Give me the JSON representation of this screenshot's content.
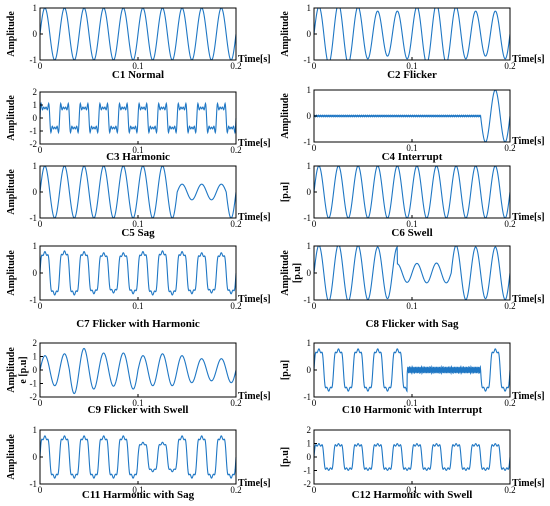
{
  "colors": {
    "line": "#1f77c4",
    "axis": "#000000",
    "background": "#ffffff"
  },
  "chart_data": [
    {
      "id": "C1",
      "type": "line",
      "title": "C1  Normal",
      "ylabel": "Amplitude",
      "xlabel": "Time[s]",
      "xlim": [
        0,
        0.2
      ],
      "ylim": [
        -1,
        1
      ],
      "xticks": [
        "0",
        "0.1",
        "0.2"
      ],
      "yticks": [
        "-1",
        "0",
        "1"
      ],
      "signal": {
        "freq_hz": 50,
        "amplitude": 1
      }
    },
    {
      "id": "C2",
      "type": "line",
      "title": "C2  Flicker",
      "ylabel": "Amplitude",
      "xlabel": "Time[s]",
      "xlim": [
        0,
        0.2
      ],
      "ylim": [
        -1,
        1
      ],
      "xticks": [
        "0",
        "0.1",
        "0.2"
      ],
      "yticks": [
        "-1",
        "0",
        "1"
      ],
      "signal": {
        "freq_hz": 50,
        "amplitude": 1,
        "flicker_depth": 0.15,
        "flicker_hz": 10
      }
    },
    {
      "id": "C3",
      "type": "line",
      "title": "C3  Harmonic",
      "ylabel": "Amplitude",
      "xlabel": "Time[s]",
      "xlim": [
        0,
        0.2
      ],
      "ylim": [
        -2,
        2
      ],
      "xticks": [
        "0",
        "0.1",
        "0.2"
      ],
      "yticks": [
        "-2",
        "-1",
        "0",
        "1",
        "2"
      ],
      "signal": {
        "freq_hz": 50,
        "amplitude": 1,
        "harmonics": [
          [
            3,
            0.4
          ],
          [
            5,
            0.3
          ],
          [
            7,
            0.2
          ]
        ]
      }
    },
    {
      "id": "C4",
      "type": "line",
      "title": "C4  Interrupt",
      "ylabel": "Amplitude",
      "xlabel": "Time[s]",
      "xlim": [
        0,
        0.2
      ],
      "ylim": [
        -1,
        1
      ],
      "xticks": [
        "0",
        "0.1",
        "0.2"
      ],
      "yticks": [
        "-1",
        "0",
        "1"
      ],
      "signal": {
        "freq_hz": 50,
        "amplitude": 1,
        "interrupt_start_s": 0,
        "interrupt_end_s": 0.17,
        "residual": 0.02
      }
    },
    {
      "id": "C5",
      "type": "line",
      "title": "C5  Sag",
      "ylabel": "Amplitude",
      "xlabel": "Time[s]",
      "xlim": [
        0,
        0.2
      ],
      "ylim": [
        -1,
        1
      ],
      "xticks": [
        "0",
        "0.1",
        "0.2"
      ],
      "yticks": [
        "-1",
        "0",
        "1"
      ],
      "signal": {
        "freq_hz": 50,
        "amplitude": 1,
        "sag_start_s": 0.14,
        "sag_end_s": 0.19,
        "sag_level": 0.3
      }
    },
    {
      "id": "C6",
      "type": "line",
      "title": "C6  Swell",
      "ylabel": "[p.u]",
      "xlabel": "Time[s]",
      "xlim": [
        0,
        0.2
      ],
      "ylim": [
        -1,
        1
      ],
      "xticks": [
        "0",
        "0.1",
        "0.2"
      ],
      "yticks": [
        "-1",
        "0",
        "1"
      ],
      "signal": {
        "freq_hz": 50,
        "amplitude": 1
      }
    },
    {
      "id": "C7",
      "type": "line",
      "title": "C7  Flicker with Harmonic",
      "ylabel": "Amplitude",
      "xlabel": "Time[s]",
      "xlim": [
        0,
        0.2
      ],
      "ylim": [
        -1,
        1
      ],
      "xticks": [
        "0",
        "0.1",
        "0.2"
      ],
      "yticks": [
        "-1",
        "0",
        "1"
      ],
      "signal": {
        "freq_hz": 50,
        "amplitude": 0.85,
        "harmonics": [
          [
            3,
            0.2
          ],
          [
            5,
            0.12
          ]
        ],
        "flicker_depth": 0.05,
        "flicker_hz": 10
      }
    },
    {
      "id": "C8",
      "type": "line",
      "title": "C8  Flicker with Sag",
      "ylabel": "Amplitude",
      "y2label": "[p.u]",
      "xlabel": "Time[s]",
      "xlim": [
        0,
        0.2
      ],
      "ylim": [
        -1,
        1
      ],
      "xticks": [
        "0",
        "0.1",
        "0.2"
      ],
      "yticks": [
        "-1",
        "0",
        "1"
      ],
      "signal": {
        "freq_hz": 50,
        "amplitude": 1,
        "sag_start_s": 0.085,
        "sag_end_s": 0.14,
        "sag_level": 0.35,
        "flicker_depth": 0.05,
        "flicker_hz": 10
      }
    },
    {
      "id": "C9",
      "type": "line",
      "title": "C9  Flicker with Swell",
      "ylabel": "Amplitude",
      "y2label": "e [p.u]",
      "xlabel": "Time[s]",
      "xlim": [
        0,
        0.2
      ],
      "ylim": [
        -2,
        2
      ],
      "xticks": [
        "0",
        "0.1",
        "0.2"
      ],
      "yticks": [
        "-2",
        "-1",
        "0",
        "1",
        "2"
      ],
      "signal": {
        "freq_hz": 50,
        "amplitude": 1,
        "swell_start_s": 0.03,
        "swell_end_s": 0.1,
        "swell_level": 1.5,
        "flicker_depth": 0.2,
        "flicker_hz": 10
      }
    },
    {
      "id": "C10",
      "type": "line",
      "title": "C10  Harmonic with Interrupt",
      "ylabel": "[p.u]",
      "xlabel": "Time[s]",
      "xlim": [
        0,
        0.2
      ],
      "ylim": [
        -1,
        1
      ],
      "xticks": [
        "0",
        "0.1",
        "0.2"
      ],
      "yticks": [
        "-1",
        "0",
        "1"
      ],
      "signal": {
        "freq_hz": 50,
        "amplitude": 0.85,
        "harmonics": [
          [
            3,
            0.2
          ],
          [
            5,
            0.12
          ]
        ],
        "interrupt_start_s": 0.095,
        "interrupt_end_s": 0.17,
        "residual": 0.12,
        "residual_harmonic": 13
      }
    },
    {
      "id": "C11",
      "type": "line",
      "title": "C11  Harmonic with  Sag",
      "ylabel": "Amplitude",
      "xlabel": "Time[s]",
      "xlim": [
        0,
        0.2
      ],
      "ylim": [
        -1,
        1
      ],
      "xticks": [
        "0",
        "0.1",
        "0.2"
      ],
      "yticks": [
        "-1",
        "0",
        "1"
      ],
      "signal": {
        "freq_hz": 50,
        "amplitude": 0.85,
        "harmonics": [
          [
            3,
            0.2
          ],
          [
            5,
            0.12
          ]
        ],
        "sag_start_s": 0.1,
        "sag_end_s": 0.14,
        "sag_level": 0.7
      }
    },
    {
      "id": "C12",
      "type": "line",
      "title": "C12  Harmonic with Swell",
      "ylabel": "[p.u]",
      "xlabel": "Time[s]",
      "xlim": [
        0,
        0.2
      ],
      "ylim": [
        -2,
        2
      ],
      "xticks": [
        "0",
        "0.1",
        "0.2"
      ],
      "yticks": [
        "-2",
        "-1",
        "0",
        "1",
        "2"
      ],
      "signal": {
        "freq_hz": 50,
        "amplitude": 1.1,
        "harmonics": [
          [
            3,
            0.25
          ],
          [
            5,
            0.15
          ]
        ]
      }
    }
  ]
}
